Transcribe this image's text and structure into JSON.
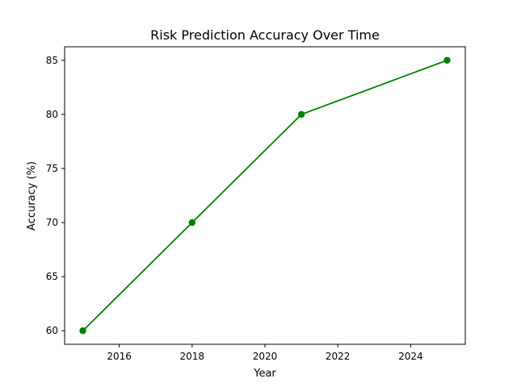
{
  "chart_data": {
    "type": "line",
    "title": "Risk Prediction Accuracy Over Time",
    "xlabel": "Year",
    "ylabel": "Accuracy (%)",
    "xlim": [
      2014.5,
      2025.5
    ],
    "ylim": [
      58.75,
      86.25
    ],
    "x_ticks": [
      2016,
      2018,
      2020,
      2022,
      2024
    ],
    "y_ticks": [
      60,
      65,
      70,
      75,
      80,
      85
    ],
    "grid": false,
    "legend": "none",
    "series": [
      {
        "color": "#008000",
        "marker": "circle",
        "points": [
          {
            "x": 2015,
            "y": 60
          },
          {
            "x": 2018,
            "y": 70
          },
          {
            "x": 2021,
            "y": 80
          },
          {
            "x": 2025,
            "y": 85
          }
        ]
      }
    ]
  }
}
